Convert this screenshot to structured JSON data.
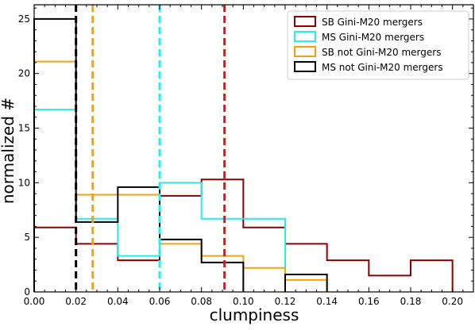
{
  "chart_data": {
    "type": "histogram",
    "xlabel": "clumpiness",
    "ylabel": "normalized #",
    "xlim": [
      0.0,
      0.21
    ],
    "ylim": [
      0,
      26.3
    ],
    "xticks": [
      "0.00",
      "0.02",
      "0.04",
      "0.06",
      "0.08",
      "0.10",
      "0.12",
      "0.14",
      "0.16",
      "0.18",
      "0.20"
    ],
    "yticks": [
      "0",
      "5",
      "10",
      "15",
      "20",
      "25"
    ],
    "bin_edges": [
      0.0,
      0.02,
      0.04,
      0.06,
      0.08,
      0.1,
      0.12,
      0.14,
      0.16,
      0.18,
      0.2
    ],
    "legend_position": "upper right",
    "series": [
      {
        "name": "SB Gini-M20 mergers",
        "color": "#8b0000",
        "values": [
          5.9,
          4.4,
          2.9,
          8.8,
          10.3,
          5.9,
          4.4,
          2.9,
          1.5,
          2.9
        ],
        "median": 0.091,
        "median_color": "#ee1111"
      },
      {
        "name": "MS Gini-M20 mergers",
        "color": "#22eeee",
        "values": [
          16.7,
          6.7,
          3.3,
          10.0,
          6.7,
          6.7,
          0,
          0,
          0,
          0
        ],
        "median": 0.06,
        "median_color": "#22eeee"
      },
      {
        "name": "SB not Gini-M20 mergers",
        "color": "#f5a10b",
        "values": [
          21.1,
          8.9,
          8.9,
          4.4,
          3.3,
          2.2,
          1.1,
          0,
          0,
          0
        ],
        "median": 0.028,
        "median_color": "#f5a10b"
      },
      {
        "name": "MS not Gini-M20 mergers",
        "color": "#000000",
        "values": [
          25.0,
          6.4,
          9.6,
          4.8,
          2.7,
          0,
          1.6,
          0,
          0,
          0
        ],
        "median": 0.02,
        "median_color": "#000000"
      }
    ]
  }
}
